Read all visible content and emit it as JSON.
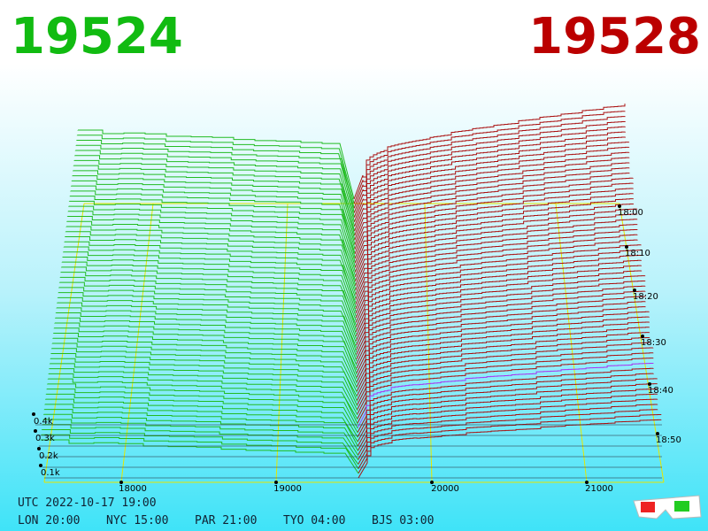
{
  "header": {
    "bid": "19524",
    "ask": "19528"
  },
  "price_axis": {
    "labels": [
      "18000",
      "19000",
      "20000",
      "21000"
    ]
  },
  "volume_axis": {
    "labels": [
      "0.1k",
      "0.2k",
      "0.3k",
      "0.4k"
    ]
  },
  "time_axis": {
    "labels": [
      "18:00",
      "18:10",
      "18:20",
      "18:30",
      "18:40",
      "18:50"
    ]
  },
  "footer": {
    "utc": "UTC 2022-10-17 19:00",
    "clocks": [
      "LON 20:00",
      "NYC 15:00",
      "PAR 21:00",
      "TYO 04:00",
      "BJS 03:00"
    ]
  }
}
